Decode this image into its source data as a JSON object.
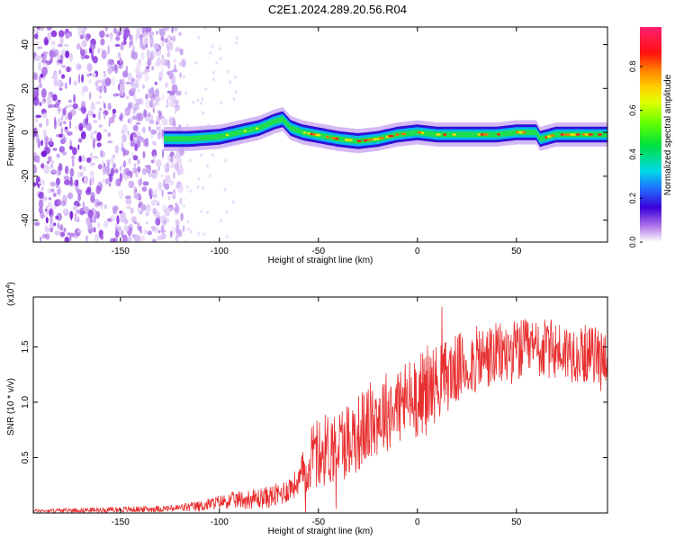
{
  "title": "C2E1.2024.289.20.56.R04",
  "colors": {
    "ridge": "#2222dd",
    "snr_line": "#e83030",
    "noise": "#8a2be2"
  },
  "chart_data": [
    {
      "type": "heatmap",
      "xlabel": "Height of straight line (km)",
      "ylabel": "Frequency (Hz)",
      "xlim": [
        -194,
        96
      ],
      "ylim": [
        -50,
        48
      ],
      "x_ticks": [
        -150,
        -100,
        -50,
        0,
        50
      ],
      "y_ticks": [
        40,
        20,
        0,
        -20,
        -40
      ],
      "x_tick_labels": [
        "-150",
        "-100",
        "-50",
        "0",
        "50"
      ],
      "y_tick_labels": [
        "40",
        "20",
        "0",
        "-20",
        "-40"
      ],
      "noise_region_x": [
        -194,
        -118
      ],
      "ridge_centerline": {
        "x": [
          -128,
          -115,
          -100,
          -90,
          -80,
          -72,
          -68,
          -64,
          -58,
          -52,
          -46,
          -40,
          -30,
          -20,
          -10,
          0,
          10,
          20,
          30,
          40,
          50,
          60,
          62,
          66,
          70,
          80,
          96
        ],
        "y": [
          -3,
          -3,
          -2,
          0,
          2,
          5,
          6,
          2,
          0,
          -1,
          -2,
          -3,
          -4,
          -3,
          -1,
          0,
          -1,
          -1,
          -1,
          -1,
          0,
          0,
          -3,
          -2,
          -1,
          -1,
          -1
        ]
      },
      "colorbar": {
        "label": "Normalized spectral amplitude",
        "range": [
          0,
          0.98
        ],
        "ticks": [
          0.0,
          0.2,
          0.4,
          0.6,
          0.8
        ],
        "tick_labels": [
          "0.0",
          "0.2",
          "0.4",
          "0.6",
          "0.8"
        ]
      }
    },
    {
      "type": "line",
      "xlabel": "Height of straight line (km)",
      "ylabel": "SNR (10 * v/v)",
      "y_multiplier": "(x10",
      "y_multiplier_exp": "4",
      "y_multiplier_close": ")",
      "xlim": [
        -194,
        96
      ],
      "ylim": [
        0,
        1.95
      ],
      "x_ticks": [
        -150,
        -100,
        -50,
        0,
        50
      ],
      "y_ticks": [
        0.5,
        1.0,
        1.5
      ],
      "x_tick_labels": [
        "-150",
        "-100",
        "-50",
        "0",
        "50"
      ],
      "y_tick_labels": [
        "0.5",
        "1.0",
        "1.5"
      ],
      "trend": {
        "x": [
          -194,
          -150,
          -125,
          -110,
          -100,
          -90,
          -80,
          -70,
          -60,
          -55,
          -50,
          -45,
          -40,
          -30,
          -20,
          -10,
          0,
          10,
          20,
          30,
          40,
          50,
          60,
          70,
          80,
          96
        ],
        "y": [
          0.02,
          0.03,
          0.04,
          0.06,
          0.1,
          0.12,
          0.13,
          0.16,
          0.28,
          0.45,
          0.55,
          0.58,
          0.62,
          0.72,
          0.88,
          0.98,
          1.06,
          1.18,
          1.3,
          1.38,
          1.42,
          1.46,
          1.48,
          1.47,
          1.44,
          1.42
        ]
      },
      "noise_amplitude": {
        "x": [
          -194,
          -125,
          -100,
          -60,
          -55,
          -40,
          0,
          20,
          50,
          96
        ],
        "y": [
          0.01,
          0.02,
          0.04,
          0.08,
          0.2,
          0.22,
          0.24,
          0.2,
          0.18,
          0.16
        ]
      }
    }
  ]
}
